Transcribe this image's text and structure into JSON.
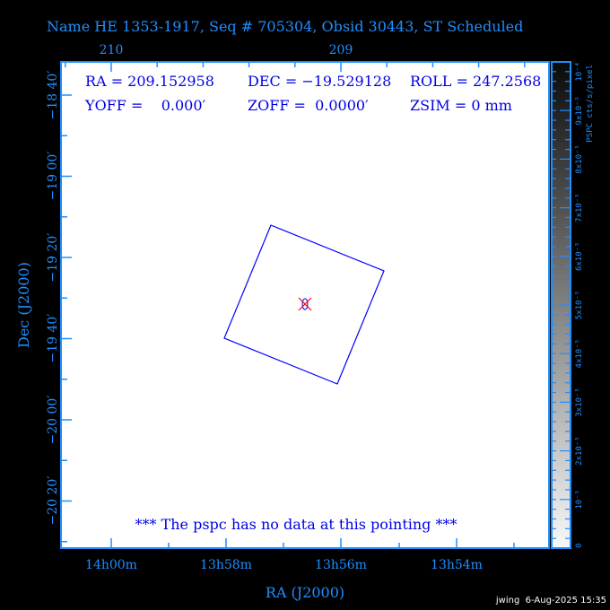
{
  "title": "Name HE 1353-1917, Seq # 705304, Obsid 30443, ST Scheduled",
  "info": {
    "ra": "RA = 209.152958",
    "dec": "DEC = −19.529128",
    "roll": "ROLL = 247.2568",
    "yoff": "YOFF =    0.000′",
    "zoff": "ZOFF =  0.0000′",
    "zsim": "ZSIM = 0 mm"
  },
  "message": "*** The pspc has no data at this pointing ***",
  "axes": {
    "top_ticks": [
      "210",
      "209"
    ],
    "bottom_ticks": [
      "14h00m",
      "13h58m",
      "13h56m",
      "13h54m"
    ],
    "left_ticks": [
      "−18 40′",
      "−19 00′",
      "−19 20′",
      "−19 40′",
      "−20 00′",
      "−20 20′"
    ],
    "xlabel": "RA (J2000)",
    "ylabel": "Dec (J2000)"
  },
  "colorbar": {
    "label": "PSPC cts/s/pixel",
    "ticks": [
      "10⁻⁴",
      "9x10⁻⁵",
      "8x10⁻⁵",
      "7x10⁻⁵",
      "6x10⁻⁵",
      "5x10⁻⁵",
      "4x10⁻⁵",
      "3x10⁻⁵",
      "2x10⁻⁵",
      "10⁻⁵",
      "0"
    ]
  },
  "footer": "jwing  6-Aug-2025 15:35",
  "colors": {
    "axis": "#1e8fff",
    "text": "#0000e6",
    "field": "#0000ff",
    "target": "#ff0000"
  }
}
